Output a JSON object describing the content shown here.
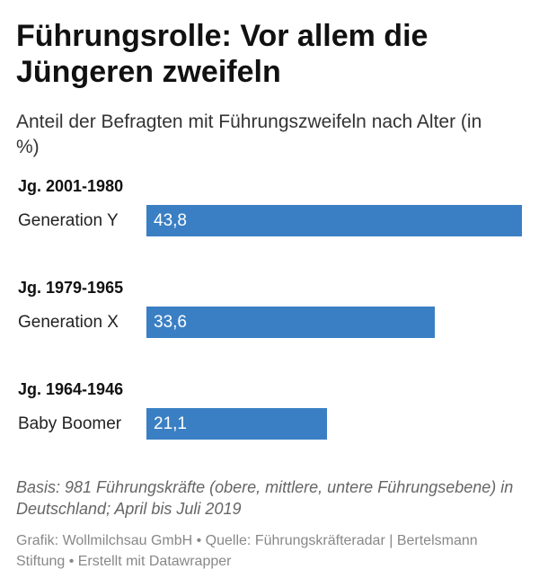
{
  "header": {
    "title": "Führungsrolle: Vor allem die Jüngeren zweifeln",
    "subtitle": "Anteil der Befragten mit Führungszweifeln nach Alter (in %)"
  },
  "chart_data": {
    "type": "bar",
    "orientation": "horizontal",
    "title": "Führungsrolle: Vor allem die Jüngeren zweifeln",
    "subtitle": "Anteil der Befragten mit Führungszweifeln nach Alter (in %)",
    "groups": [
      "Jg. 2001-1980",
      "Jg. 1979-1965",
      "Jg. 1964-1946"
    ],
    "categories": [
      "Generation Y",
      "Generation X",
      "Baby Boomer"
    ],
    "values": [
      43.8,
      33.6,
      21.1
    ],
    "value_labels": [
      "43,8",
      "33,6",
      "21,1"
    ],
    "xlim": [
      0,
      43.8
    ],
    "grid": false,
    "bar_color": "#3a7fc4"
  },
  "notes": "Basis: 981 Führungskräfte (obere, mittlere, untere Führungsebene) in Deutschland; April bis Juli 2019",
  "footer": "Grafik: Wollmilchsau GmbH • Quelle: Führungskräfteradar | Bertelsmann Stiftung • Erstellt mit Datawrapper"
}
